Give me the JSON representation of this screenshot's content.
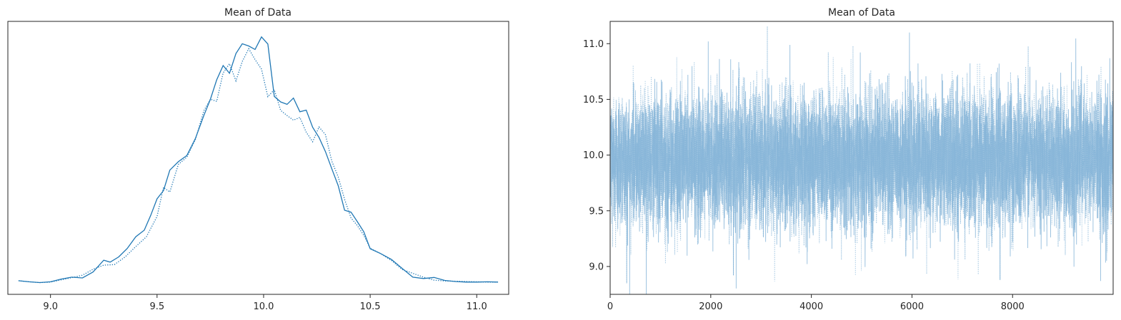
{
  "chart_data": [
    {
      "type": "line",
      "panel": "kde",
      "title": "Mean of Data",
      "xlabel": "",
      "ylabel": "",
      "xlim": [
        8.8,
        11.15
      ],
      "ylim": [
        0,
        1.0
      ],
      "xticks": [
        9.0,
        9.5,
        10.0,
        10.5,
        11.0
      ],
      "xtick_labels": [
        "9.0",
        "9.5",
        "10.0",
        "10.5",
        "11.0"
      ],
      "yticks_shown": false,
      "grid": false,
      "color": "#1f77b4",
      "series": [
        {
          "style": "solid",
          "x": [
            8.85,
            8.9,
            8.95,
            9.0,
            9.05,
            9.1,
            9.15,
            9.2,
            9.25,
            9.28,
            9.32,
            9.36,
            9.4,
            9.44,
            9.47,
            9.5,
            9.53,
            9.56,
            9.6,
            9.64,
            9.68,
            9.72,
            9.75,
            9.78,
            9.81,
            9.84,
            9.87,
            9.9,
            9.93,
            9.96,
            9.99,
            10.02,
            10.05,
            10.08,
            10.11,
            10.14,
            10.17,
            10.2,
            10.23,
            10.26,
            10.29,
            10.32,
            10.35,
            10.38,
            10.41,
            10.44,
            10.47,
            10.5,
            10.55,
            10.6,
            10.65,
            10.7,
            10.75,
            10.8,
            10.85,
            10.9,
            10.95,
            11.0,
            11.05,
            11.1
          ],
          "y": [
            0.05,
            0.046,
            0.043,
            0.046,
            0.056,
            0.063,
            0.06,
            0.082,
            0.125,
            0.118,
            0.137,
            0.168,
            0.211,
            0.235,
            0.289,
            0.35,
            0.38,
            0.455,
            0.486,
            0.509,
            0.571,
            0.656,
            0.714,
            0.786,
            0.838,
            0.81,
            0.882,
            0.918,
            0.91,
            0.897,
            0.943,
            0.917,
            0.725,
            0.705,
            0.696,
            0.719,
            0.669,
            0.675,
            0.612,
            0.575,
            0.523,
            0.46,
            0.398,
            0.308,
            0.301,
            0.266,
            0.229,
            0.167,
            0.149,
            0.128,
            0.095,
            0.063,
            0.058,
            0.062,
            0.051,
            0.047,
            0.045,
            0.045,
            0.046,
            0.045
          ]
        },
        {
          "style": "dotted",
          "x": [
            8.85,
            8.9,
            8.95,
            9.0,
            9.05,
            9.1,
            9.15,
            9.2,
            9.25,
            9.3,
            9.35,
            9.4,
            9.45,
            9.5,
            9.53,
            9.56,
            9.6,
            9.64,
            9.68,
            9.72,
            9.75,
            9.78,
            9.81,
            9.84,
            9.87,
            9.9,
            9.93,
            9.96,
            9.99,
            10.02,
            10.05,
            10.08,
            10.11,
            10.14,
            10.17,
            10.2,
            10.23,
            10.26,
            10.29,
            10.32,
            10.35,
            10.38,
            10.41,
            10.44,
            10.47,
            10.5,
            10.55,
            10.6,
            10.65,
            10.7,
            10.75,
            10.8,
            10.85,
            10.9,
            10.95,
            11.0,
            11.05,
            11.1
          ],
          "y": [
            0.05,
            0.046,
            0.043,
            0.045,
            0.053,
            0.061,
            0.07,
            0.092,
            0.107,
            0.109,
            0.137,
            0.175,
            0.211,
            0.285,
            0.392,
            0.375,
            0.476,
            0.503,
            0.567,
            0.673,
            0.715,
            0.707,
            0.811,
            0.845,
            0.782,
            0.853,
            0.9,
            0.86,
            0.825,
            0.724,
            0.75,
            0.674,
            0.655,
            0.638,
            0.648,
            0.594,
            0.559,
            0.613,
            0.585,
            0.488,
            0.43,
            0.348,
            0.28,
            0.252,
            0.216,
            0.169,
            0.149,
            0.124,
            0.091,
            0.077,
            0.063,
            0.052,
            0.049,
            0.048,
            0.047,
            0.046,
            0.045,
            0.045
          ]
        }
      ]
    },
    {
      "type": "line",
      "panel": "trace",
      "title": "Mean of Data",
      "xlabel": "",
      "ylabel": "",
      "xlim": [
        0,
        9999
      ],
      "ylim": [
        8.75,
        11.2
      ],
      "xticks": [
        0,
        2000,
        4000,
        6000,
        8000
      ],
      "xtick_labels": [
        "0",
        "2000",
        "4000",
        "6000",
        "8000"
      ],
      "yticks": [
        9.0,
        9.5,
        10.0,
        10.5,
        11.0
      ],
      "ytick_labels": [
        "9.0",
        "9.5",
        "10.0",
        "10.5",
        "11.0"
      ],
      "grid": false,
      "color": "#7fb0d6",
      "n_draws": 10000,
      "chain_stats": {
        "mean": 9.96,
        "sd": 0.3
      },
      "notable_points": [
        {
          "x": 0,
          "y": 10.9
        },
        {
          "x": 330,
          "y": 8.85
        },
        {
          "x": 1950,
          "y": 11.02
        },
        {
          "x": 2450,
          "y": 8.92
        },
        {
          "x": 5950,
          "y": 11.1
        },
        {
          "x": 7750,
          "y": 8.88
        },
        {
          "x": 9750,
          "y": 8.87
        }
      ],
      "series": [
        {
          "style": "solid"
        },
        {
          "style": "dotted"
        }
      ]
    }
  ]
}
